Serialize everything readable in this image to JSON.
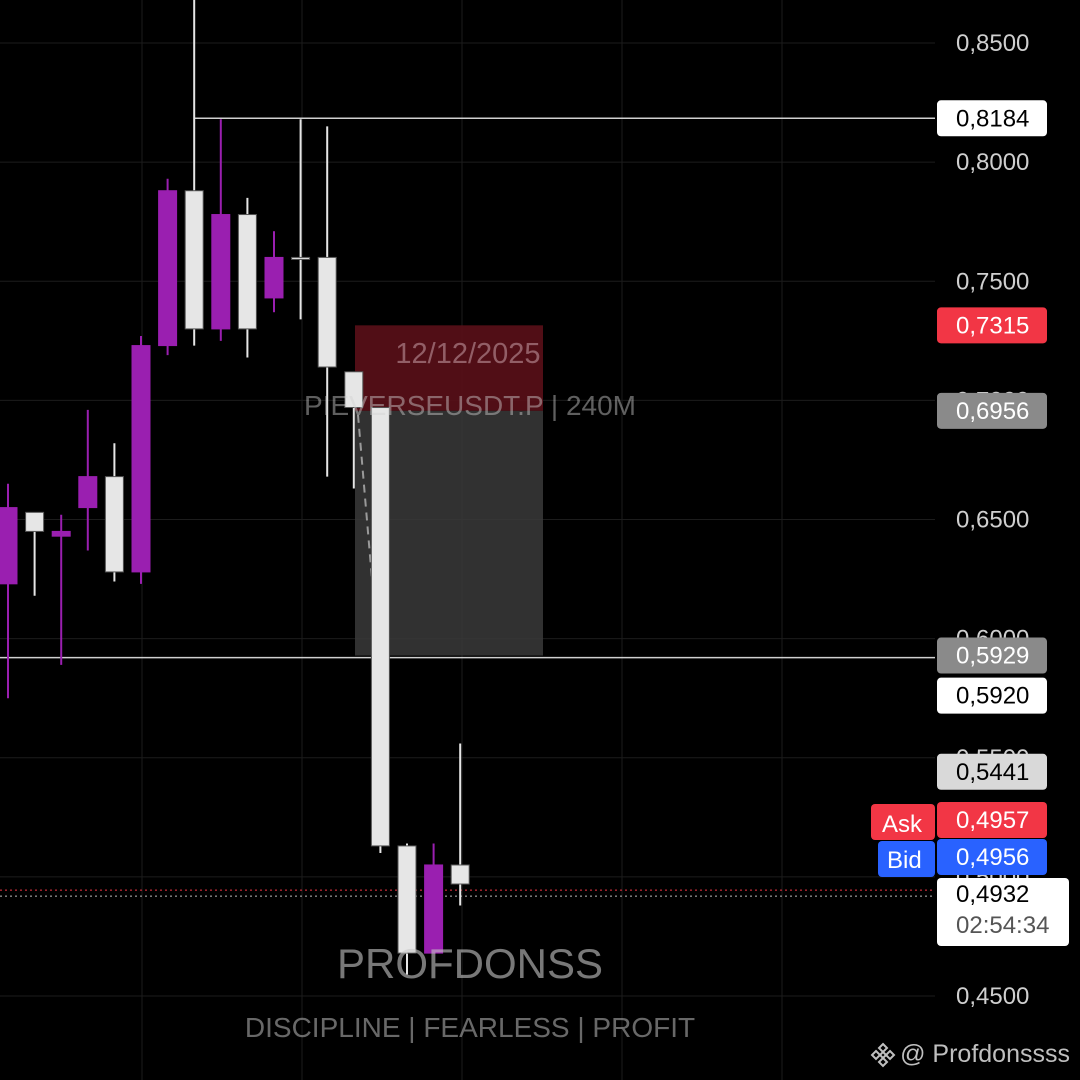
{
  "watermark": {
    "date": "12/12/2025",
    "symbol": "PIEVERSEUSDT.P | 240M",
    "brand": "PROFDONSS",
    "tagline": "DISCIPLINE  |  FEARLESS | PROFIT"
  },
  "handle": "@ Profdonssss",
  "colors": {
    "bull": "#e6e6e6",
    "bear": "#9a1fb0",
    "ask": "#f23645",
    "bid": "#2962ff",
    "grid": "#1c1c1c",
    "level_line": "#d0d0d0",
    "zone_red": "#5a1018",
    "zone_gray": "#3a3a3a"
  },
  "price_tags": {
    "level_high": "0,8184",
    "red": "0,7315",
    "gray_high": "0,6956",
    "gray_low": "0,5929",
    "level_low": "0,5920",
    "light": "0,5441",
    "ask_label": "Ask",
    "ask": "0,4957",
    "bid_label": "Bid",
    "bid": "0,4956",
    "last": "0,4932",
    "countdown": "02:54:34"
  },
  "chart_data": {
    "type": "candlestick",
    "symbol": "PIEVERSEUSDT.P",
    "timeframe": "240M",
    "y_axis_ticks": [
      "0,4500",
      "0,5000",
      "0,5500",
      "0,6000",
      "0,6500",
      "0,7000",
      "0,7500",
      "0,8000",
      "0,8500"
    ],
    "ylim": [
      0.445,
      0.865
    ],
    "horizontal_levels": [
      0.8184,
      0.592
    ],
    "zones": [
      {
        "kind": "stop",
        "from": 0.6956,
        "to": 0.7315
      },
      {
        "kind": "target",
        "from": 0.5929,
        "to": 0.6956
      }
    ],
    "candles": [
      {
        "open": 0.655,
        "high": 0.665,
        "low": 0.575,
        "close": 0.623
      },
      {
        "open": 0.645,
        "high": 0.651,
        "low": 0.618,
        "close": 0.653
      },
      {
        "open": 0.645,
        "high": 0.652,
        "low": 0.589,
        "close": 0.643
      },
      {
        "open": 0.668,
        "high": 0.696,
        "low": 0.637,
        "close": 0.655
      },
      {
        "open": 0.628,
        "high": 0.682,
        "low": 0.624,
        "close": 0.668
      },
      {
        "open": 0.723,
        "high": 0.727,
        "low": 0.623,
        "close": 0.628
      },
      {
        "open": 0.788,
        "high": 0.793,
        "low": 0.719,
        "close": 0.723
      },
      {
        "open": 0.73,
        "high": 0.87,
        "low": 0.723,
        "close": 0.788
      },
      {
        "open": 0.778,
        "high": 0.818,
        "low": 0.725,
        "close": 0.73
      },
      {
        "open": 0.73,
        "high": 0.785,
        "low": 0.718,
        "close": 0.778
      },
      {
        "open": 0.76,
        "high": 0.771,
        "low": 0.737,
        "close": 0.743
      },
      {
        "open": 0.76,
        "high": 0.818,
        "low": 0.734,
        "close": 0.76
      },
      {
        "open": 0.714,
        "high": 0.815,
        "low": 0.668,
        "close": 0.76
      },
      {
        "open": 0.697,
        "high": 0.712,
        "low": 0.663,
        "close": 0.712
      },
      {
        "open": 0.513,
        "high": 0.697,
        "low": 0.51,
        "close": 0.697
      },
      {
        "open": 0.468,
        "high": 0.514,
        "low": 0.459,
        "close": 0.513
      },
      {
        "open": 0.505,
        "high": 0.514,
        "low": 0.468,
        "close": 0.468
      },
      {
        "open": 0.497,
        "high": 0.556,
        "low": 0.488,
        "close": 0.505
      }
    ]
  }
}
